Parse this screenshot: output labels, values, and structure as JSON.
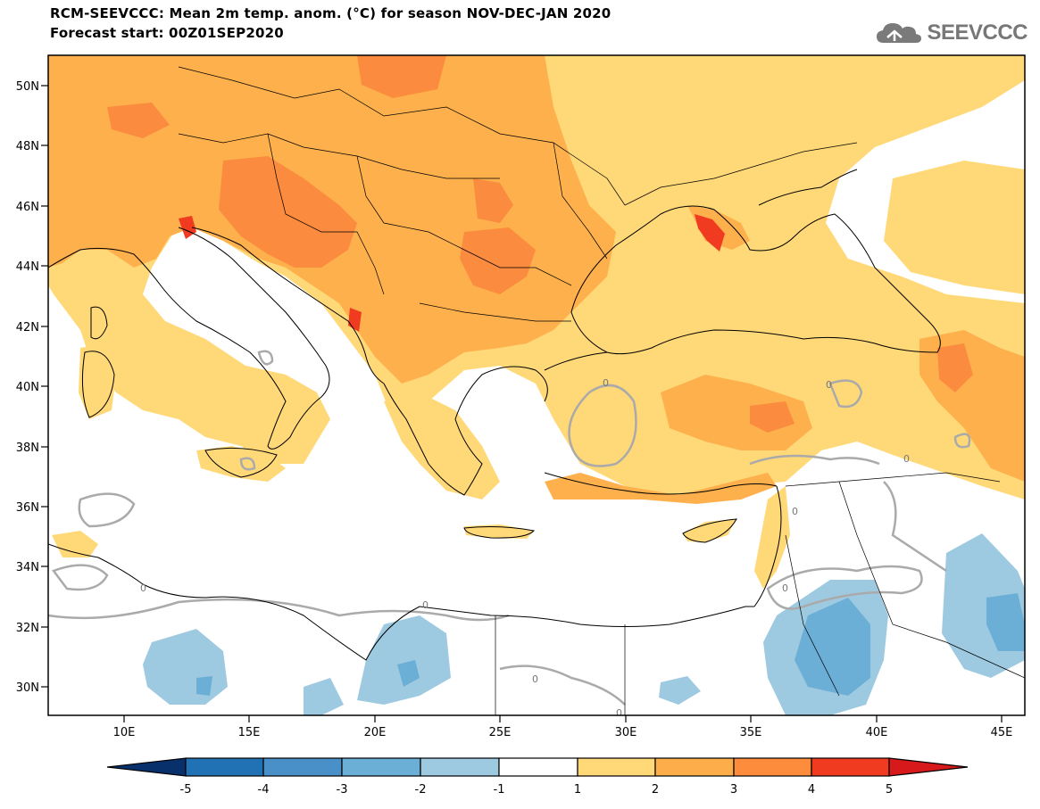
{
  "header": {
    "title": "RCM-SEEVCCC: Mean 2m temp. anom. (°C) for season NOV-DEC-JAN 2020",
    "subtitle": "Forecast start: 00Z01SEP2020",
    "logo_text": "SEEVCCC",
    "logo_icon": "cloud-icon"
  },
  "map": {
    "lat_labels": [
      "50N",
      "48N",
      "46N",
      "44N",
      "42N",
      "40N",
      "38N",
      "36N",
      "34N",
      "32N",
      "30N"
    ],
    "lon_labels": [
      "10E",
      "15E",
      "20E",
      "25E",
      "30E",
      "35E",
      "40E",
      "45E"
    ],
    "contour_labels": [
      "0",
      "0",
      "0",
      "0",
      "0",
      "0",
      "0",
      "0",
      "0"
    ]
  },
  "colorbar": {
    "labels": [
      "-5",
      "-4",
      "-3",
      "-2",
      "-1",
      "1",
      "2",
      "3",
      "4",
      "5"
    ],
    "colors": [
      "#08306b",
      "#2171b5",
      "#4a90c8",
      "#6baed6",
      "#9ecae1",
      "#ffffff",
      "#ffd878",
      "#fdae4b",
      "#fd8d3c",
      "#f03b20",
      "#d7191c"
    ]
  },
  "palette": {
    "sea": "#ffffff",
    "warm1": "#ffd878",
    "warm2": "#fdb04c",
    "warm3": "#fb8b3e",
    "warm4": "#f03b20",
    "cool1": "#9ecae1",
    "cool2": "#6baed6",
    "zero_contour": "#aaaaaa"
  }
}
